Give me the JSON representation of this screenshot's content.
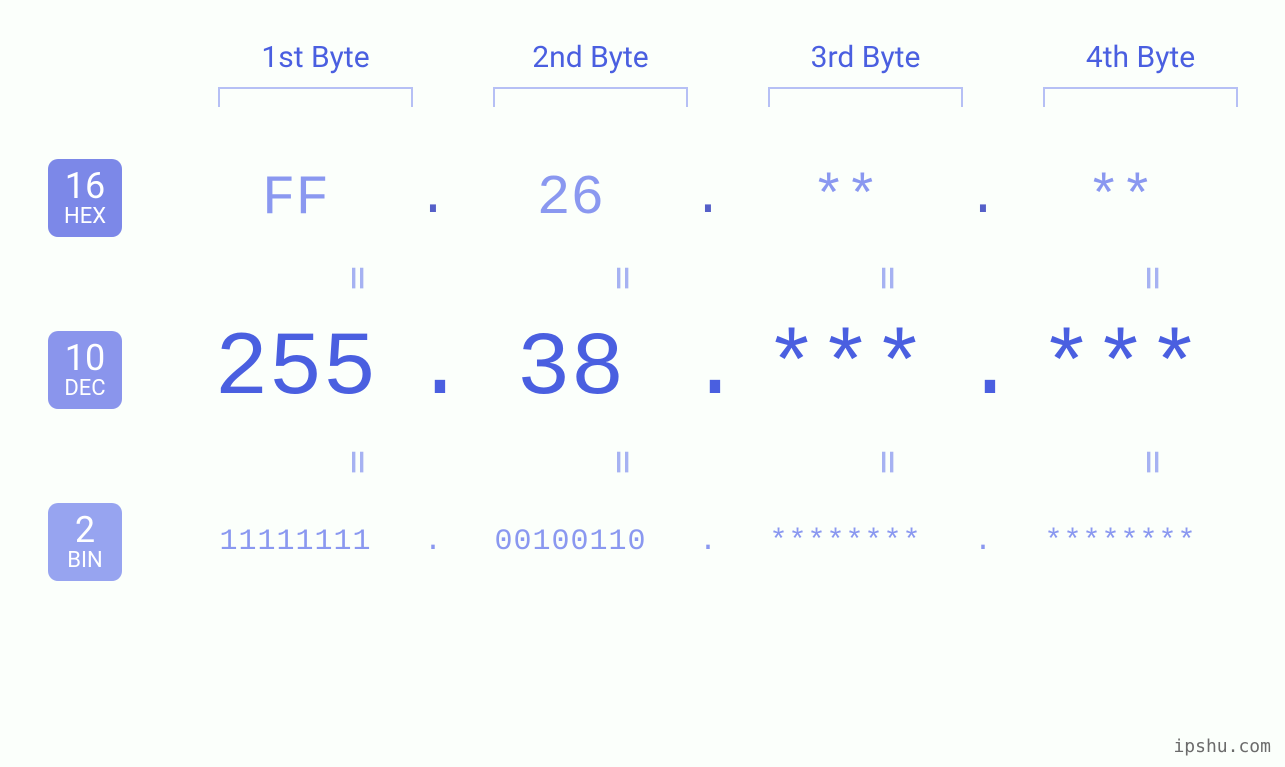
{
  "background_color": "#fbfffb",
  "accent_badge_hex_color": "#7c88e8",
  "accent_badge_dec_color": "#8a95ec",
  "accent_badge_bin_color": "#97a4f0",
  "text_primary": "#4a5fe0",
  "text_secondary": "#8a98f0",
  "bracket_color": "#b6c0f5",
  "byte_headers": [
    "1st Byte",
    "2nd Byte",
    "3rd Byte",
    "4th Byte"
  ],
  "bases": [
    {
      "num": "16",
      "name": "HEX"
    },
    {
      "num": "10",
      "name": "DEC"
    },
    {
      "num": "2",
      "name": "BIN"
    }
  ],
  "hex": {
    "b1": "FF",
    "b2": "26",
    "b3": "**",
    "b4": "**"
  },
  "dec": {
    "b1": "255",
    "b2": "38",
    "b3": "***",
    "b4": "***"
  },
  "bin": {
    "b1": "11111111",
    "b2": "00100110",
    "b3": "********",
    "b4": "********"
  },
  "dot": ".",
  "equals": "=",
  "watermark": "ipshu.com",
  "fontsizes": {
    "byte_label": 30,
    "badge_num": 36,
    "badge_txt": 22,
    "hex": 56,
    "dec": 90,
    "bin": 30,
    "eq": 40,
    "dot_dec": 90
  }
}
